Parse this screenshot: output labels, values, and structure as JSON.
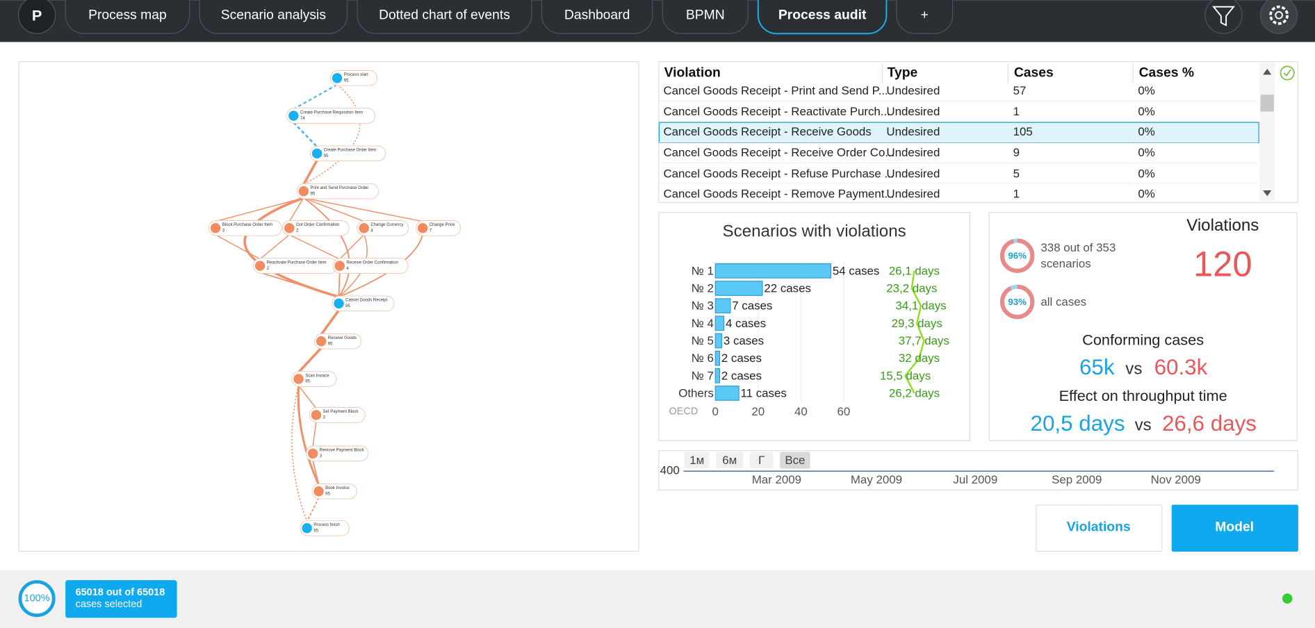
{
  "toolbar": {
    "logo": "P",
    "tabs": [
      "Process map",
      "Scenario analysis",
      "Dotted chart of events",
      "Dashboard",
      "BPMN",
      "Process audit",
      "+"
    ]
  },
  "process_map": {
    "nodes": [
      {
        "label": "Process start",
        "count": 95
      },
      {
        "label": "Create Purchase Requisition Item",
        "count": 74
      },
      {
        "label": "Create Purchase Order Item",
        "count": 95
      },
      {
        "label": "Print and Send Purchase Order",
        "count": 95
      },
      {
        "label": "Block Purchase Order Item",
        "count": 3
      },
      {
        "label": "Out Order Confirmation",
        "count": 2
      },
      {
        "label": "Change Currency",
        "count": 4
      },
      {
        "label": "Change Price",
        "count": 7
      },
      {
        "label": "Reactivate Purchase Order Item",
        "count": 2
      },
      {
        "label": "Receive Order Confirmation",
        "count": 4
      },
      {
        "label": "Cancel Goods Receipt",
        "count": 95
      },
      {
        "label": "Receive Goods",
        "count": 95
      },
      {
        "label": "Scan Invoice",
        "count": 95
      },
      {
        "label": "Set Payment Block",
        "count": 3
      },
      {
        "label": "Remove Payment Block",
        "count": 3
      },
      {
        "label": "Book Invoice",
        "count": 95
      },
      {
        "label": "Process finish",
        "count": 95
      }
    ]
  },
  "violations_table": {
    "columns": [
      "Violation",
      "Type",
      "Cases",
      "Cases %"
    ],
    "rows": [
      [
        "Cancel Goods Receipt - Print and Send P...",
        "Undesired",
        57,
        "0%"
      ],
      [
        "Cancel Goods Receipt - Reactivate Purch...",
        "Undesired",
        1,
        "0%"
      ],
      [
        "Cancel Goods Receipt - Receive Goods",
        "Undesired",
        105,
        "0%"
      ],
      [
        "Cancel Goods Receipt - Receive Order Co...",
        "Undesired",
        9,
        "0%"
      ],
      [
        "Cancel Goods Receipt - Refuse Purchase ...",
        "Undesired",
        5,
        "0%"
      ],
      [
        "Cancel Goods Receipt - Remove Payment...",
        "Undesired",
        1,
        "0%"
      ]
    ]
  },
  "scenarios_chart": {
    "type": "bar",
    "title": "Scenarios with violations",
    "categories": [
      "№ 1",
      "№ 2",
      "№ 3",
      "№ 4",
      "№ 5",
      "№ 6",
      "№ 7",
      "Others"
    ],
    "values": [
      54,
      22,
      7,
      4,
      3,
      2,
      2,
      11
    ],
    "value_labels": [
      "54 cases",
      "22 cases",
      "7 cases",
      "4 cases",
      "3 cases",
      "2 cases",
      "2 cases",
      "11 cases"
    ],
    "color": "#5bc8f5",
    "xlim": [
      0,
      60
    ],
    "xticks": [
      0,
      20,
      40,
      60
    ],
    "durations": {
      "values": [
        26.1,
        23.2,
        34.1,
        29.3,
        37.7,
        32,
        15.5,
        26.2
      ],
      "value_labels": [
        "26,1 days",
        "23,2 days",
        "34,1 days",
        "29,3 days",
        "37,7 days",
        "32 days",
        "15,5 days",
        "26,2 days"
      ],
      "color": "#8ee01e"
    },
    "x2lim": [
      0,
      100
    ],
    "source": "OECD"
  },
  "violations_summary": {
    "title": "Violations",
    "count": 120,
    "scenario_share": {
      "value": 96,
      "label": "96%",
      "text": [
        "338 out of 353",
        "scenarios"
      ]
    },
    "case_share": {
      "value": 93,
      "label": "93%",
      "text": [
        "all cases"
      ]
    },
    "conforming_title": "Conforming cases",
    "conforming": "65k",
    "vs": "vs",
    "nonconforming": "60.3k",
    "throughput_title": "Effect on throughput time",
    "throughput_conforming": "20,5 days",
    "throughput_nonconforming": "26,6 days"
  },
  "timeline": {
    "ranges": [
      "1м",
      "6м",
      "Г",
      "Все"
    ],
    "y_label": "400",
    "months": [
      "Mar 2009",
      "May 2009",
      "Jul 2009",
      "Sep 2009",
      "Nov 2009"
    ]
  },
  "actions": [
    "Violations",
    "Model"
  ],
  "footer": {
    "selection": {
      "value": 100,
      "label": "100%"
    },
    "line1": "65018 out of 65018",
    "line2": "cases selected"
  }
}
